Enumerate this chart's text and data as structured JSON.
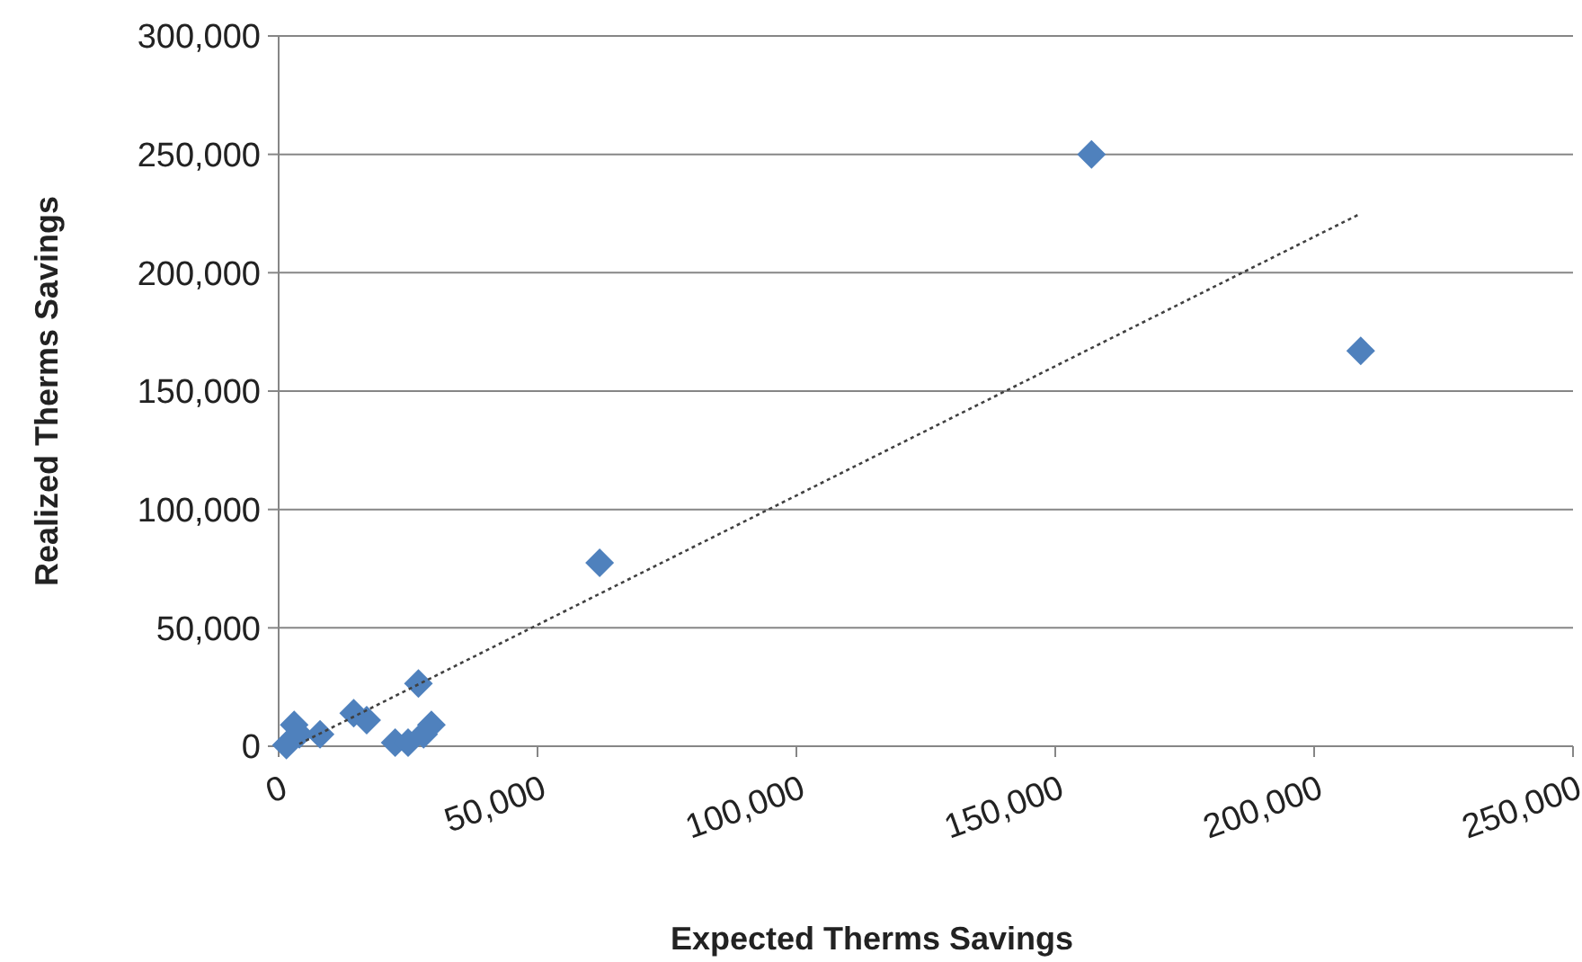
{
  "chart_data": {
    "type": "scatter",
    "xlabel": "Expected Therms Savings",
    "ylabel": "Realized Therms Savings",
    "xlim": [
      0,
      250000
    ],
    "xticks": [
      {
        "value": 0,
        "label": "0"
      },
      {
        "value": 50000,
        "label": "50,000"
      },
      {
        "value": 100000,
        "label": "100,000"
      },
      {
        "value": 150000,
        "label": "150,000"
      },
      {
        "value": 200000,
        "label": "200,000"
      },
      {
        "value": 250000,
        "label": "250,000"
      }
    ],
    "ylim": [
      0,
      300000
    ],
    "yticks": [
      {
        "value": 0,
        "label": "0"
      },
      {
        "value": 50000,
        "label": "50,000"
      },
      {
        "value": 100000,
        "label": "100,000"
      },
      {
        "value": 150000,
        "label": "150,000"
      },
      {
        "value": 200000,
        "label": "200,000"
      },
      {
        "value": 250000,
        "label": "250,000"
      },
      {
        "value": 300000,
        "label": "300,000"
      }
    ],
    "grid": "y",
    "series": [
      {
        "color": "#4f81bd",
        "marker": "diamond",
        "x": [
          1500,
          3000,
          4000,
          8000,
          14500,
          17000,
          22500,
          25000,
          27000,
          28000,
          29500,
          62000,
          157000,
          209000
        ],
        "values": [
          500,
          9000,
          5000,
          5000,
          14000,
          11000,
          1500,
          1500,
          26500,
          5000,
          9000,
          77500,
          250000,
          167000
        ]
      },
      {
        "type": "line",
        "color": "#404040",
        "line_style": "dotted",
        "marker": "none",
        "x": [
          4000,
          209000
        ],
        "values": [
          1000,
          225000
        ]
      }
    ]
  }
}
